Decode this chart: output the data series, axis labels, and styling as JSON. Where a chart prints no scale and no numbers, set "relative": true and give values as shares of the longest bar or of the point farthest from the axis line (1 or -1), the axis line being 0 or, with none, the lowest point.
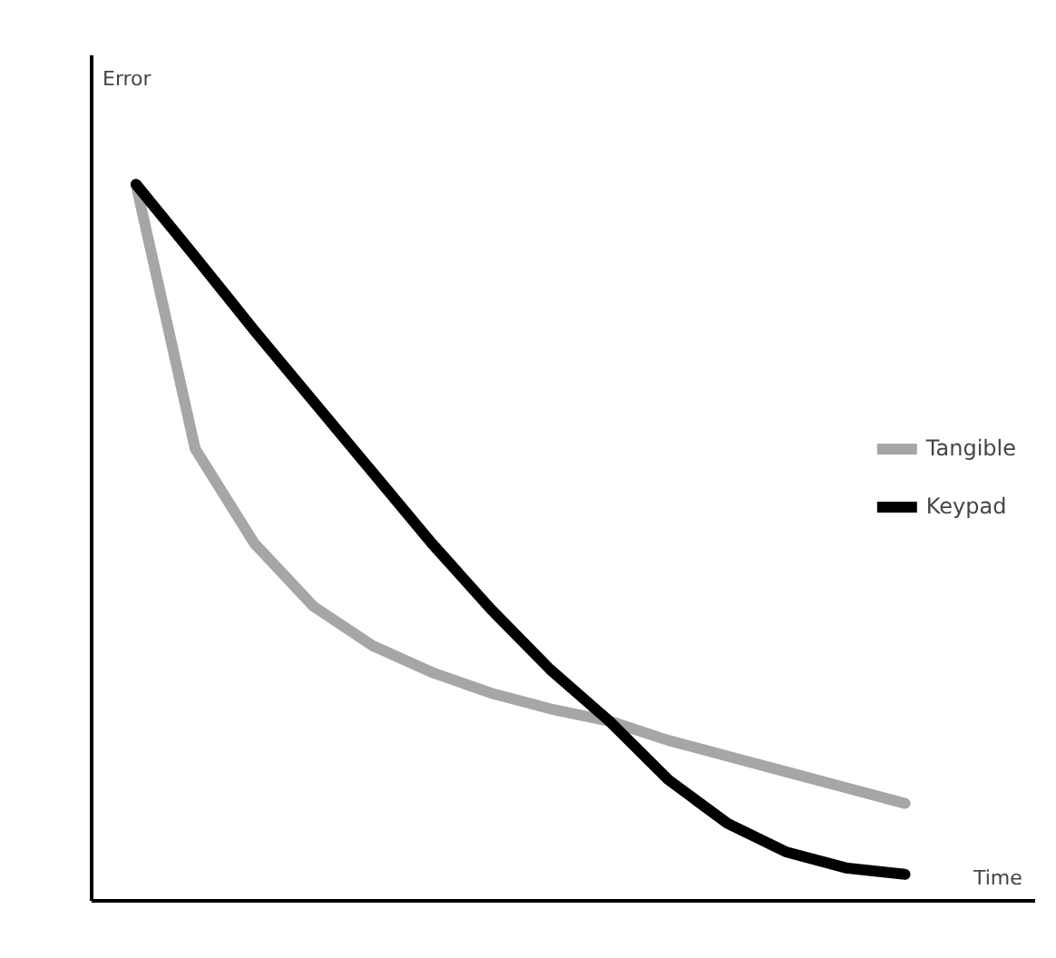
{
  "chart_data": {
    "type": "line",
    "relative": true,
    "xlabel": "Time",
    "ylabel": "Error",
    "categories": [
      null,
      null,
      null,
      null,
      null,
      null,
      null,
      null,
      null,
      null,
      null,
      null,
      null,
      null
    ],
    "series": [
      {
        "name": "Tangible",
        "color": "#a6a6a6",
        "values": [
          1.0,
          0.631,
          0.499,
          0.411,
          0.356,
          0.319,
          0.29,
          0.268,
          0.251,
          0.224,
          0.202,
          0.18,
          0.158,
          0.136
        ]
      },
      {
        "name": "Keypad",
        "color": "#000000",
        "values": [
          1.0,
          0.899,
          0.796,
          0.697,
          0.598,
          0.499,
          0.407,
          0.323,
          0.251,
          0.169,
          0.108,
          0.068,
          0.046,
          0.037
        ]
      }
    ],
    "legend": "right",
    "grid": false,
    "marker": "none",
    "line_style": "solid"
  }
}
